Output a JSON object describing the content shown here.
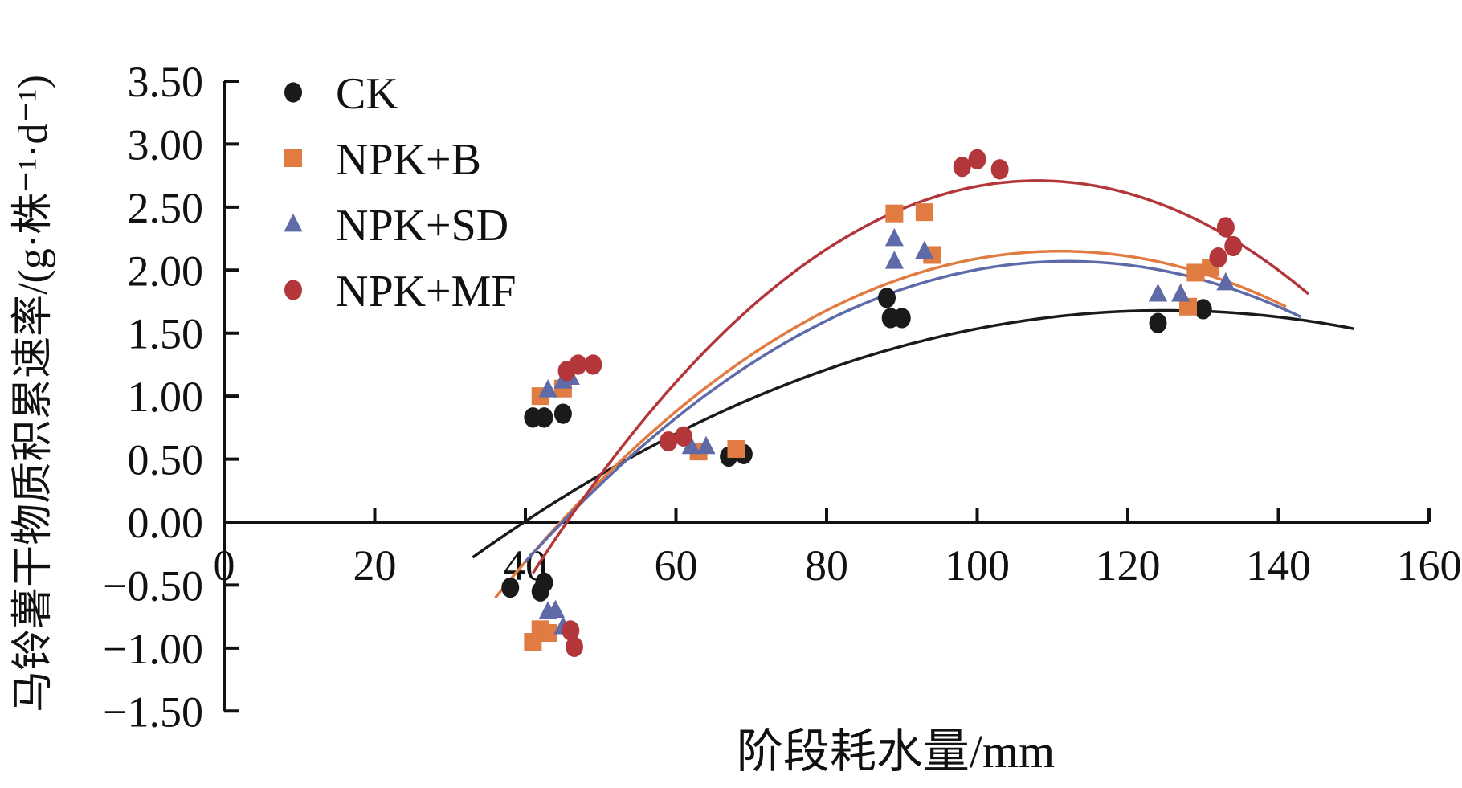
{
  "chart_data": {
    "type": "scatter",
    "title": "",
    "xlabel": "阶段耗水量/mm",
    "ylabel": "马铃薯干物质积累速率/(g·株⁻¹·d⁻¹)",
    "xlim": [
      0,
      160
    ],
    "ylim": [
      -1.5,
      3.5
    ],
    "x_ticks": [
      0,
      20,
      40,
      60,
      80,
      100,
      120,
      140,
      160
    ],
    "x_tick_labels": [
      "0",
      "20",
      "40",
      "60",
      "80",
      "100",
      "120",
      "140",
      "160"
    ],
    "y_ticks": [
      -1.5,
      -1.0,
      -0.5,
      0,
      0.5,
      1.0,
      1.5,
      2.0,
      2.5,
      3.0,
      3.5
    ],
    "y_tick_labels": [
      "−1.50",
      "−1.00",
      "−0.50",
      "0.00",
      "0.50",
      "1.00",
      "1.50",
      "2.00",
      "2.50",
      "3.00",
      "3.50"
    ],
    "grid": false,
    "legend_position": "top-left",
    "series": [
      {
        "name": "CK",
        "color": "#1a1a1a",
        "marker": "circle",
        "points": [
          [
            38,
            -0.52
          ],
          [
            42,
            -0.55
          ],
          [
            42.5,
            -0.48
          ],
          [
            41,
            0.83
          ],
          [
            42.5,
            0.83
          ],
          [
            45,
            0.86
          ],
          [
            67,
            0.52
          ],
          [
            69,
            0.54
          ],
          [
            88,
            1.78
          ],
          [
            88.5,
            1.62
          ],
          [
            90,
            1.62
          ],
          [
            124,
            1.58
          ],
          [
            130,
            1.69
          ]
        ],
        "fit": {
          "vertex_x": 125,
          "vertex_y": 1.68,
          "a": -0.0002316,
          "x_range": [
            33,
            150
          ]
        }
      },
      {
        "name": "NPK+B",
        "color": "#e07b42",
        "marker": "square",
        "points": [
          [
            41,
            -0.95
          ],
          [
            42,
            -0.85
          ],
          [
            43,
            -0.88
          ],
          [
            42,
            1.0
          ],
          [
            45,
            1.06
          ],
          [
            63,
            0.56
          ],
          [
            68,
            0.58
          ],
          [
            89,
            2.45
          ],
          [
            93,
            2.46
          ],
          [
            94,
            2.12
          ],
          [
            128,
            1.71
          ],
          [
            129,
            1.98
          ],
          [
            131,
            2.02
          ]
        ],
        "fit": {
          "vertex_x": 111,
          "vertex_y": 2.15,
          "a": -0.000489,
          "x_range": [
            36,
            141
          ]
        }
      },
      {
        "name": "NPK+SD",
        "color": "#5f6aa8",
        "marker": "triangle",
        "points": [
          [
            43,
            -0.71
          ],
          [
            44,
            -0.7
          ],
          [
            45,
            -0.83
          ],
          [
            43,
            1.05
          ],
          [
            45,
            1.12
          ],
          [
            46,
            1.15
          ],
          [
            62,
            0.6
          ],
          [
            64,
            0.6
          ],
          [
            89,
            2.25
          ],
          [
            89,
            2.07
          ],
          [
            93,
            2.15
          ],
          [
            124,
            1.81
          ],
          [
            127,
            1.81
          ],
          [
            133,
            1.9
          ]
        ],
        "fit": {
          "vertex_x": 112,
          "vertex_y": 2.07,
          "a": -0.00046,
          "x_range": [
            40,
            143
          ]
        }
      },
      {
        "name": "NPK+MF",
        "color": "#b3363a",
        "marker": "circle",
        "points": [
          [
            46,
            -0.86
          ],
          [
            46.5,
            -0.99
          ],
          [
            45.5,
            1.2
          ],
          [
            47,
            1.25
          ],
          [
            49,
            1.25
          ],
          [
            59,
            0.64
          ],
          [
            61,
            0.68
          ],
          [
            98,
            2.82
          ],
          [
            100,
            2.88
          ],
          [
            103,
            2.8
          ],
          [
            132,
            2.1
          ],
          [
            133,
            2.34
          ],
          [
            134,
            2.19
          ]
        ],
        "fit": {
          "vertex_x": 108,
          "vertex_y": 2.71,
          "a": -0.000694,
          "x_range": [
            41,
            144
          ]
        }
      }
    ]
  }
}
